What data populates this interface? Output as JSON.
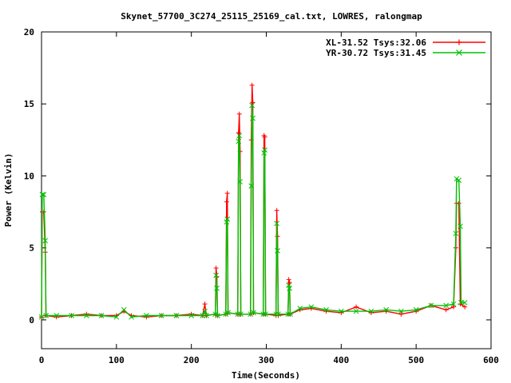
{
  "chart_data": {
    "type": "line",
    "title": "Skynet_57700_3C274_25115_25169_cal.txt, LOWRES, ralongmap",
    "xlabel": "Time(Seconds)",
    "ylabel": "Power (Kelvin)",
    "xlim": [
      0,
      600
    ],
    "ylim": [
      -2,
      20
    ],
    "xticks": [
      0,
      100,
      200,
      300,
      400,
      500,
      600
    ],
    "yticks": [
      0,
      5,
      10,
      15,
      20
    ],
    "grid": false,
    "legend_position": "top-right",
    "series": [
      {
        "name": "XL-31.52 Tsys:32.06",
        "color": "#ff0000",
        "marker": "plus",
        "points": [
          [
            0,
            0.2
          ],
          [
            1,
            7.5
          ],
          [
            3,
            7.5
          ],
          [
            5,
            4.7
          ],
          [
            6,
            0.3
          ],
          [
            20,
            0.2
          ],
          [
            40,
            0.3
          ],
          [
            60,
            0.4
          ],
          [
            80,
            0.3
          ],
          [
            100,
            0.3
          ],
          [
            110,
            0.6
          ],
          [
            120,
            0.3
          ],
          [
            140,
            0.2
          ],
          [
            160,
            0.3
          ],
          [
            180,
            0.3
          ],
          [
            200,
            0.4
          ],
          [
            215,
            0.3
          ],
          [
            218,
            1.1
          ],
          [
            220,
            0.3
          ],
          [
            232,
            0.4
          ],
          [
            233,
            3.6
          ],
          [
            234,
            3.0
          ],
          [
            235,
            0.3
          ],
          [
            246,
            0.4
          ],
          [
            247,
            8.2
          ],
          [
            248,
            8.8
          ],
          [
            249,
            0.5
          ],
          [
            262,
            0.4
          ],
          [
            263,
            13.0
          ],
          [
            264,
            14.3
          ],
          [
            265,
            11.7
          ],
          [
            266,
            0.4
          ],
          [
            279,
            0.4
          ],
          [
            280,
            12.5
          ],
          [
            281,
            16.3
          ],
          [
            282,
            15.1
          ],
          [
            283,
            0.5
          ],
          [
            296,
            0.4
          ],
          [
            297,
            12.8
          ],
          [
            298,
            12.7
          ],
          [
            299,
            0.4
          ],
          [
            313,
            0.3
          ],
          [
            314,
            7.6
          ],
          [
            315,
            5.8
          ],
          [
            316,
            0.3
          ],
          [
            329,
            0.4
          ],
          [
            330,
            2.8
          ],
          [
            331,
            2.6
          ],
          [
            332,
            0.4
          ],
          [
            345,
            0.7
          ],
          [
            360,
            0.8
          ],
          [
            380,
            0.6
          ],
          [
            400,
            0.5
          ],
          [
            420,
            0.9
          ],
          [
            440,
            0.5
          ],
          [
            460,
            0.6
          ],
          [
            480,
            0.4
          ],
          [
            500,
            0.6
          ],
          [
            520,
            1.0
          ],
          [
            540,
            0.7
          ],
          [
            550,
            0.9
          ],
          [
            553,
            5.0
          ],
          [
            554,
            8.1
          ],
          [
            557,
            8.1
          ],
          [
            559,
            1.1
          ],
          [
            565,
            0.9
          ]
        ]
      },
      {
        "name": "YR-30.72 Tsys:31.45",
        "color": "#00c000",
        "marker": "cross",
        "points": [
          [
            0,
            0.2
          ],
          [
            1,
            8.7
          ],
          [
            3,
            8.7
          ],
          [
            5,
            5.5
          ],
          [
            6,
            0.3
          ],
          [
            20,
            0.3
          ],
          [
            40,
            0.3
          ],
          [
            60,
            0.3
          ],
          [
            80,
            0.3
          ],
          [
            100,
            0.2
          ],
          [
            110,
            0.7
          ],
          [
            120,
            0.2
          ],
          [
            140,
            0.3
          ],
          [
            160,
            0.3
          ],
          [
            180,
            0.3
          ],
          [
            200,
            0.3
          ],
          [
            215,
            0.3
          ],
          [
            218,
            0.6
          ],
          [
            220,
            0.3
          ],
          [
            232,
            0.4
          ],
          [
            233,
            3.1
          ],
          [
            234,
            2.2
          ],
          [
            235,
            0.3
          ],
          [
            246,
            0.4
          ],
          [
            247,
            6.8
          ],
          [
            248,
            7.0
          ],
          [
            249,
            0.5
          ],
          [
            262,
            0.4
          ],
          [
            263,
            12.4
          ],
          [
            264,
            12.8
          ],
          [
            265,
            9.6
          ],
          [
            266,
            0.4
          ],
          [
            279,
            0.4
          ],
          [
            280,
            9.3
          ],
          [
            281,
            14.9
          ],
          [
            282,
            14.0
          ],
          [
            283,
            0.5
          ],
          [
            296,
            0.4
          ],
          [
            297,
            11.6
          ],
          [
            298,
            11.8
          ],
          [
            299,
            0.4
          ],
          [
            313,
            0.4
          ],
          [
            314,
            6.7
          ],
          [
            315,
            4.8
          ],
          [
            316,
            0.4
          ],
          [
            329,
            0.4
          ],
          [
            330,
            2.4
          ],
          [
            331,
            2.2
          ],
          [
            332,
            0.4
          ],
          [
            345,
            0.8
          ],
          [
            360,
            0.9
          ],
          [
            380,
            0.7
          ],
          [
            400,
            0.6
          ],
          [
            420,
            0.6
          ],
          [
            440,
            0.6
          ],
          [
            460,
            0.7
          ],
          [
            480,
            0.6
          ],
          [
            500,
            0.7
          ],
          [
            520,
            1.0
          ],
          [
            540,
            1.0
          ],
          [
            550,
            1.1
          ],
          [
            553,
            6.0
          ],
          [
            554,
            9.8
          ],
          [
            557,
            9.7
          ],
          [
            559,
            6.5
          ],
          [
            560,
            1.2
          ],
          [
            565,
            1.2
          ]
        ]
      }
    ]
  }
}
